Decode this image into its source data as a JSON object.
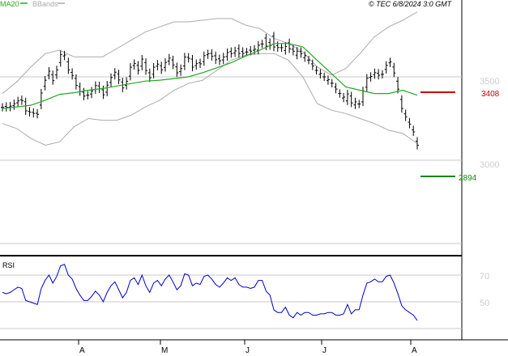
{
  "header": {
    "legend_ma": "MA20",
    "legend_bb": "BBands",
    "copyright": "© TEC 6/8/2024 3:0 GMT"
  },
  "colors": {
    "ma20": "#22aa22",
    "bbands": "#aaaaaa",
    "price": "#000000",
    "resistance": "#cc0000",
    "support": "#118811",
    "rsi": "#0000cc"
  },
  "chart_data": [
    {
      "type": "line",
      "panel": "price",
      "y_ticks": [
        3000,
        3500
      ],
      "ylim": [
        2500,
        4000
      ],
      "x_tick_labels": [
        "A",
        "M",
        "J",
        "J",
        "A"
      ],
      "levels": [
        {
          "label": "3408",
          "value": 3408,
          "color": "#cc0000"
        },
        {
          "label": "2894",
          "value": 2894,
          "color": "#118811"
        }
      ],
      "ma20": [
        3310,
        3320,
        3330,
        3360,
        3395,
        3405,
        3420,
        3430,
        3445,
        3460,
        3475,
        3480,
        3490,
        3500,
        3525,
        3555,
        3585,
        3625,
        3660,
        3700,
        3700,
        3680,
        3600,
        3520,
        3440,
        3420,
        3400,
        3400,
        3420,
        3390
      ],
      "bb_upper": [
        3400,
        3470,
        3560,
        3640,
        3660,
        3620,
        3620,
        3620,
        3670,
        3720,
        3770,
        3800,
        3830,
        3830,
        3840,
        3850,
        3850,
        3810,
        3790,
        3730,
        3700,
        3650,
        3560,
        3510,
        3550,
        3640,
        3740,
        3800,
        3840,
        3890
      ],
      "bb_lower": [
        3220,
        3190,
        3130,
        3090,
        3110,
        3200,
        3250,
        3240,
        3240,
        3270,
        3320,
        3360,
        3420,
        3460,
        3480,
        3540,
        3600,
        3630,
        3640,
        3640,
        3600,
        3500,
        3340,
        3300,
        3280,
        3250,
        3220,
        3180,
        3160,
        3100
      ]
    },
    {
      "type": "line",
      "panel": "rsi",
      "label": "RSI",
      "y_ticks": [
        50,
        70
      ],
      "values": [
        57,
        56,
        57,
        59,
        61,
        60,
        51,
        50,
        49,
        48,
        60,
        66,
        70,
        64,
        69,
        77,
        78,
        70,
        67,
        60,
        55,
        51,
        51,
        54,
        58,
        55,
        50,
        57,
        62,
        65,
        59,
        53,
        57,
        66,
        68,
        63,
        70,
        62,
        57,
        64,
        66,
        62,
        67,
        70,
        65,
        59,
        62,
        71,
        70,
        62,
        64,
        63,
        69,
        70,
        67,
        63,
        61,
        64,
        68,
        66,
        68,
        63,
        61,
        61,
        60,
        61,
        66,
        66,
        58,
        55,
        44,
        42,
        42,
        46,
        40,
        38,
        42,
        40,
        42,
        42,
        40,
        40,
        41,
        41,
        42,
        42,
        40,
        40,
        41,
        48,
        41,
        44,
        44,
        55,
        64,
        65,
        67,
        65,
        65,
        69,
        70,
        64,
        56,
        47,
        44,
        42,
        40,
        36
      ],
      "ylim": [
        27,
        87
      ]
    }
  ]
}
